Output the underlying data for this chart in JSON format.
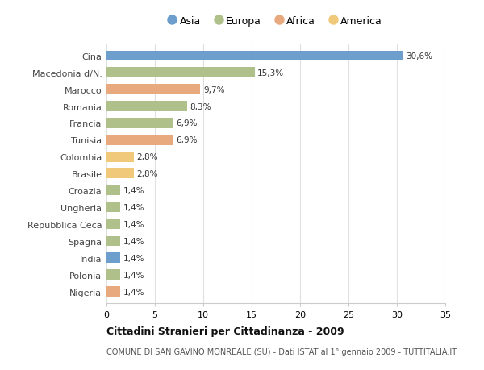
{
  "categories": [
    "Cina",
    "Macedonia d/N.",
    "Marocco",
    "Romania",
    "Francia",
    "Tunisia",
    "Colombia",
    "Brasile",
    "Croazia",
    "Ungheria",
    "Repubblica Ceca",
    "Spagna",
    "India",
    "Polonia",
    "Nigeria"
  ],
  "values": [
    30.6,
    15.3,
    9.7,
    8.3,
    6.9,
    6.9,
    2.8,
    2.8,
    1.4,
    1.4,
    1.4,
    1.4,
    1.4,
    1.4,
    1.4
  ],
  "labels": [
    "30,6%",
    "15,3%",
    "9,7%",
    "8,3%",
    "6,9%",
    "6,9%",
    "2,8%",
    "2,8%",
    "1,4%",
    "1,4%",
    "1,4%",
    "1,4%",
    "1,4%",
    "1,4%",
    "1,4%"
  ],
  "colors": [
    "#6d9ecc",
    "#afc08a",
    "#e8a97e",
    "#afc08a",
    "#afc08a",
    "#e8a97e",
    "#f0c97a",
    "#f0c97a",
    "#afc08a",
    "#afc08a",
    "#afc08a",
    "#afc08a",
    "#6d9ecc",
    "#afc08a",
    "#e8a97e"
  ],
  "legend_labels": [
    "Asia",
    "Europa",
    "Africa",
    "America"
  ],
  "legend_colors": [
    "#6d9ecc",
    "#afc08a",
    "#e8a97e",
    "#f0c97a"
  ],
  "title": "Cittadini Stranieri per Cittadinanza - 2009",
  "subtitle": "COMUNE DI SAN GAVINO MONREALE (SU) - Dati ISTAT al 1° gennaio 2009 - TUTTITALIA.IT",
  "xlim": [
    0,
    35
  ],
  "xticks": [
    0,
    5,
    10,
    15,
    20,
    25,
    30,
    35
  ],
  "background_color": "#ffffff",
  "bar_height": 0.6,
  "grid_color": "#e0e0e0"
}
